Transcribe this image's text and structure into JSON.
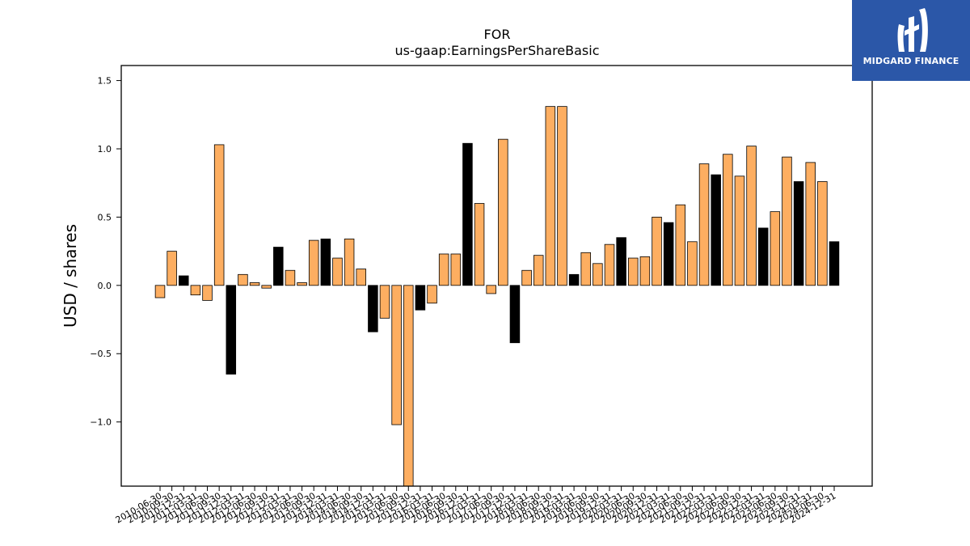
{
  "brand": {
    "name": "MIDGARD FINANCE",
    "background": "#2b57a8"
  },
  "chart_data": {
    "type": "bar",
    "title": "FOR",
    "subtitle": "us-gaap:EarningsPerShareBasic",
    "ylabel": "USD / shares",
    "xlabel": "",
    "ylim": [
      -1.47,
      1.61
    ],
    "yticks": [
      -1.0,
      -0.5,
      0.0,
      0.5,
      1.0,
      1.5
    ],
    "grid": false,
    "colors": {
      "default": "#fdae61",
      "highlight": "#000000",
      "edge": "#000000"
    },
    "categories": [
      "2010-06-30",
      "2010-09-30",
      "2010-12-31",
      "2011-03-31",
      "2011-06-30",
      "2011-09-30",
      "2011-12-31",
      "2012-03-31",
      "2012-06-30",
      "2012-09-30",
      "2012-12-31",
      "2013-03-31",
      "2013-06-30",
      "2013-09-30",
      "2013-12-31",
      "2014-03-31",
      "2014-06-30",
      "2014-09-30",
      "2014-12-31",
      "2015-03-31",
      "2015-06-30",
      "2015-09-30",
      "2015-12-31",
      "2016-03-31",
      "2016-06-30",
      "2016-09-30",
      "2016-12-31",
      "2017-03-31",
      "2017-06-30",
      "2017-09-30",
      "2017-12-31",
      "2018-03-31",
      "2018-06-30",
      "2018-09-30",
      "2018-12-31",
      "2019-03-31",
      "2019-06-30",
      "2019-09-30",
      "2019-12-31",
      "2020-03-31",
      "2020-06-30",
      "2020-09-30",
      "2020-12-31",
      "2021-03-31",
      "2021-06-30",
      "2021-09-30",
      "2021-12-31",
      "2022-03-31",
      "2022-06-30",
      "2022-09-30",
      "2022-12-31",
      "2023-03-31",
      "2023-06-30",
      "2023-09-30",
      "2023-12-31",
      "2024-03-31",
      "2024-06-30",
      "2024-12-31"
    ],
    "values": [
      -0.09,
      0.25,
      0.07,
      -0.07,
      -0.11,
      1.03,
      -0.65,
      0.08,
      0.02,
      -0.02,
      0.28,
      0.11,
      0.02,
      0.33,
      0.34,
      0.2,
      0.34,
      0.12,
      -0.34,
      -0.24,
      -1.02,
      -1.47,
      -0.18,
      -0.13,
      0.23,
      0.23,
      1.04,
      0.6,
      -0.06,
      1.07,
      -0.42,
      0.11,
      0.22,
      1.31,
      1.31,
      0.08,
      0.24,
      0.16,
      0.3,
      0.35,
      0.2,
      0.21,
      0.5,
      0.46,
      0.59,
      0.32,
      0.89,
      0.81,
      0.96,
      0.8,
      1.02,
      0.42,
      0.54,
      0.94,
      0.76,
      0.9,
      0.76,
      0.32
    ],
    "highlighted": [
      false,
      false,
      true,
      false,
      false,
      false,
      true,
      false,
      false,
      false,
      true,
      false,
      false,
      false,
      true,
      false,
      false,
      false,
      true,
      false,
      false,
      false,
      true,
      false,
      false,
      false,
      true,
      false,
      false,
      false,
      true,
      false,
      false,
      false,
      false,
      true,
      false,
      false,
      false,
      true,
      false,
      false,
      false,
      true,
      false,
      false,
      false,
      true,
      false,
      false,
      false,
      true,
      false,
      false,
      true,
      false,
      false,
      true
    ]
  }
}
